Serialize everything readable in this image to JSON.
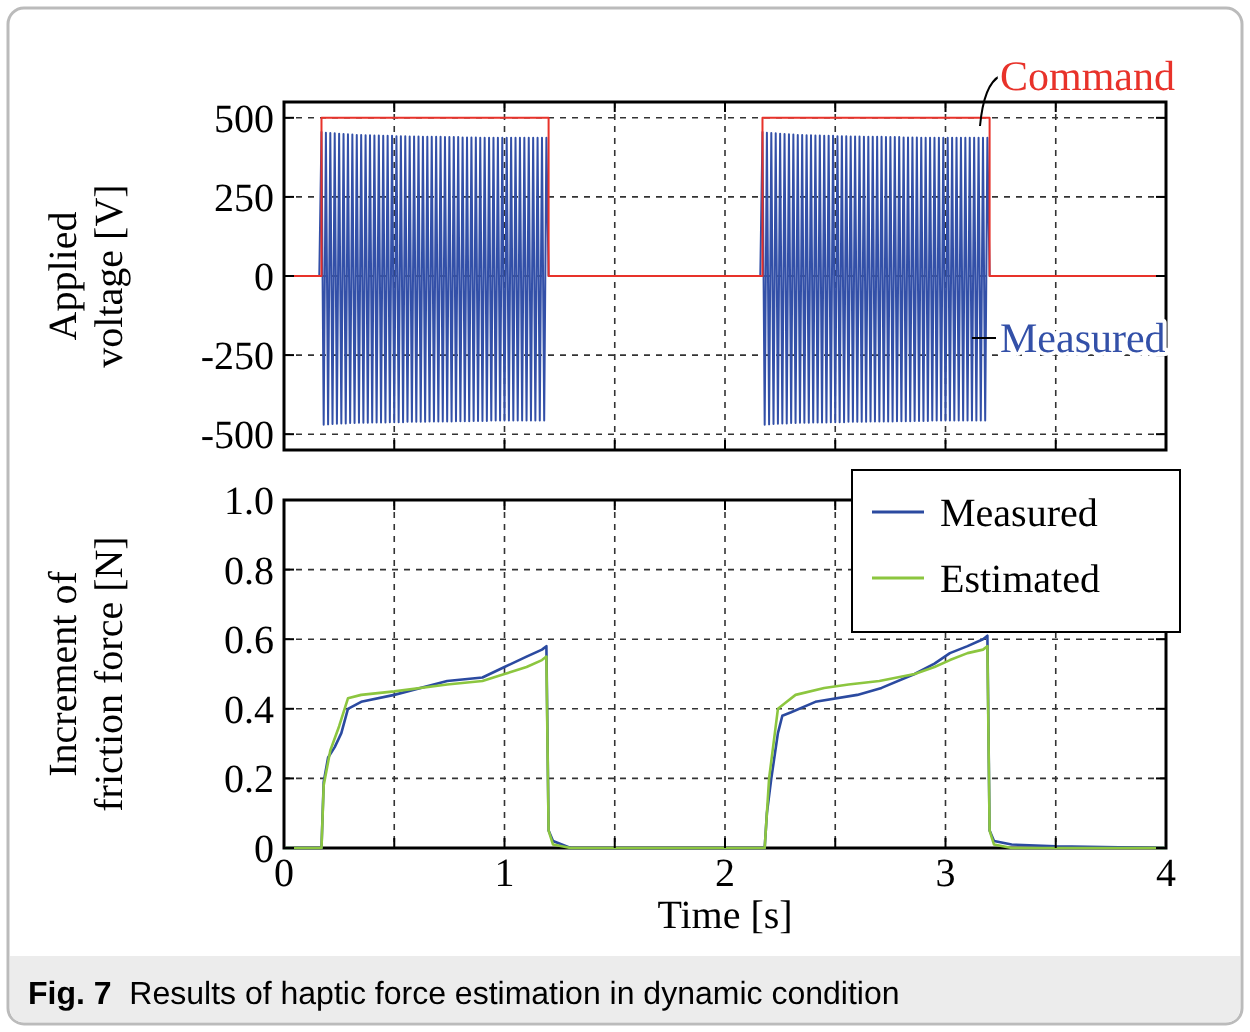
{
  "chart_data": [
    {
      "type": "line",
      "ylabel": "Applied voltage [V]",
      "xlim": [
        0,
        4
      ],
      "ylim": [
        -550,
        550
      ],
      "xticks": [
        {
          "value": 0,
          "label": null
        },
        {
          "value": 0.5,
          "label": null
        },
        {
          "value": 1,
          "label": null
        },
        {
          "value": 1.5,
          "label": null
        },
        {
          "value": 2,
          "label": null
        },
        {
          "value": 2.5,
          "label": null
        },
        {
          "value": 3,
          "label": null
        },
        {
          "value": 3.5,
          "label": null
        },
        {
          "value": 4,
          "label": null
        }
      ],
      "yticks": [
        -500,
        -250,
        0,
        250,
        500
      ],
      "tick_labels": "y",
      "grid": true,
      "legend": false,
      "series": [
        {
          "name": "Measured",
          "color": "#3350a8",
          "x": [
            0,
            0.16,
            0.17,
            0.18,
            0.19,
            0.2,
            0.21,
            0.22,
            0.23,
            0.24,
            0.25,
            0.26,
            0.27,
            0.28,
            0.29,
            0.3,
            0.31,
            0.32,
            0.33,
            0.34,
            0.35,
            0.36,
            0.37,
            0.38,
            0.39,
            0.4,
            0.41,
            0.42,
            0.43,
            0.44,
            0.45,
            0.46,
            0.47,
            0.48,
            0.49,
            0.5,
            0.51,
            0.52,
            0.53,
            0.54,
            0.55,
            0.56,
            0.57,
            0.58,
            0.59,
            0.6,
            0.61,
            0.62,
            0.63,
            0.64,
            0.65,
            0.66,
            0.67,
            0.68,
            0.69,
            0.7,
            0.71,
            0.72,
            0.73,
            0.74,
            0.75,
            0.76,
            0.77,
            0.78,
            0.79,
            0.8,
            0.81,
            0.82,
            0.83,
            0.84,
            0.85,
            0.86,
            0.87,
            0.88,
            0.89,
            0.9,
            0.91,
            0.92,
            0.93,
            0.94,
            0.95,
            0.96,
            0.97,
            0.98,
            0.99,
            1.0,
            1.01,
            1.02,
            1.03,
            1.04,
            1.05,
            1.06,
            1.07,
            1.08,
            1.09,
            1.1,
            1.11,
            1.12,
            1.13,
            1.14,
            1.15,
            1.16,
            1.17,
            1.18,
            1.19,
            1.2,
            2.16,
            2.17,
            2.18,
            2.19,
            2.2,
            2.21,
            2.22,
            2.23,
            2.24,
            2.25,
            2.26,
            2.27,
            2.28,
            2.29,
            2.3,
            2.31,
            2.32,
            2.33,
            2.34,
            2.35,
            2.36,
            2.37,
            2.38,
            2.39,
            2.4,
            2.41,
            2.42,
            2.43,
            2.44,
            2.45,
            2.46,
            2.47,
            2.48,
            2.49,
            2.5,
            2.51,
            2.52,
            2.53,
            2.54,
            2.55,
            2.56,
            2.57,
            2.58,
            2.59,
            2.6,
            2.61,
            2.62,
            2.63,
            2.64,
            2.65,
            2.66,
            2.67,
            2.68,
            2.69,
            2.7,
            2.71,
            2.72,
            2.73,
            2.74,
            2.75,
            2.76,
            2.77,
            2.78,
            2.79,
            2.8,
            2.81,
            2.82,
            2.83,
            2.84,
            2.85,
            2.86,
            2.87,
            2.88,
            2.89,
            2.9,
            2.91,
            2.92,
            2.93,
            2.94,
            2.95,
            2.96,
            2.97,
            2.98,
            2.99,
            3.0,
            3.01,
            3.02,
            3.03,
            3.04,
            3.05,
            3.06,
            3.07,
            3.08,
            3.09,
            3.1,
            3.11,
            3.12,
            3.13,
            3.14,
            3.15,
            3.16,
            3.17,
            3.18,
            3.19,
            3.2,
            4
          ],
          "values": [
            0,
            0,
            455,
            -470,
            453,
            -469,
            452,
            -468,
            451,
            -467,
            450,
            -466,
            449,
            -466,
            448,
            -465,
            447,
            -465,
            446,
            -464,
            446,
            -464,
            445,
            -464,
            445,
            -463,
            444,
            -463,
            444,
            -463,
            443,
            -463,
            443,
            -462,
            443,
            -462,
            442,
            -462,
            442,
            -462,
            442,
            -461,
            441,
            -461,
            441,
            -461,
            441,
            -461,
            440,
            -461,
            440,
            -460,
            440,
            -460,
            440,
            -460,
            440,
            -460,
            439,
            -460,
            439,
            -460,
            439,
            -459,
            439,
            -459,
            438,
            -459,
            438,
            -459,
            438,
            -458,
            438,
            -458,
            437,
            -458,
            437,
            -458,
            437,
            -457,
            437,
            -457,
            437,
            -457,
            437,
            -457,
            437,
            -457,
            437,
            -457,
            437,
            -457,
            437,
            -457,
            437,
            -457,
            437,
            -457,
            437,
            -457,
            437,
            -457,
            437,
            -457,
            437,
            0,
            0,
            455,
            -470,
            453,
            -469,
            452,
            -468,
            451,
            -467,
            450,
            -466,
            449,
            -466,
            448,
            -465,
            447,
            -465,
            446,
            -464,
            446,
            -464,
            445,
            -464,
            445,
            -463,
            444,
            -463,
            444,
            -463,
            443,
            -463,
            443,
            -462,
            443,
            -462,
            442,
            -462,
            442,
            -462,
            442,
            -461,
            441,
            -461,
            441,
            -461,
            441,
            -461,
            440,
            -461,
            440,
            -460,
            440,
            -460,
            440,
            -460,
            440,
            -460,
            439,
            -460,
            439,
            -460,
            439,
            -459,
            439,
            -459,
            438,
            -459,
            438,
            -459,
            438,
            -458,
            438,
            -458,
            437,
            -458,
            437,
            -458,
            437,
            -457,
            437,
            -457,
            437,
            -457,
            437,
            -457,
            437,
            -457,
            437,
            -457,
            437,
            -457,
            437,
            -457,
            437,
            -457,
            437,
            -457,
            437,
            -457,
            437,
            -457,
            437,
            -457,
            437,
            0,
            0
          ]
        },
        {
          "name": "Command",
          "color": "#e8322a",
          "x": [
            0,
            0.17,
            0.17,
            1.2,
            1.2,
            2.17,
            2.17,
            3.2,
            3.2,
            4
          ],
          "values": [
            0,
            0,
            500,
            500,
            0,
            0,
            500,
            500,
            0,
            0
          ]
        }
      ]
    },
    {
      "type": "line",
      "xlabel": "Time [s]",
      "ylabel": "Increment of friction force [N]",
      "xlim": [
        0,
        4
      ],
      "ylim": [
        0,
        1
      ],
      "xticks": [
        0,
        {
          "value": 0.5,
          "label": null
        },
        1,
        {
          "value": 1.5,
          "label": null
        },
        2,
        {
          "value": 2.5,
          "label": null
        },
        3,
        {
          "value": 3.5,
          "label": null
        },
        4
      ],
      "yticks": [
        0,
        0.2,
        0.4,
        0.6,
        0.8,
        {
          "value": 1,
          "label": "1.0"
        }
      ],
      "grid": true,
      "legend": "top right",
      "series": [
        {
          "name": "Measured",
          "color": "#2b4aa0",
          "x": [
            0,
            0.17,
            0.18,
            0.2,
            0.23,
            0.26,
            0.29,
            0.35,
            0.5,
            0.74,
            0.9,
            1.0,
            1.1,
            1.17,
            1.19,
            1.2,
            1.22,
            1.3,
            2.18,
            2.19,
            2.21,
            2.24,
            2.26,
            2.3,
            2.41,
            2.6,
            2.71,
            2.86,
            2.95,
            3.02,
            3.1,
            3.17,
            3.19,
            3.2,
            3.22,
            3.3,
            3.5,
            4
          ],
          "values": [
            0,
            0,
            0.19,
            0.26,
            0.29,
            0.33,
            0.4,
            0.42,
            0.44,
            0.48,
            0.49,
            0.52,
            0.55,
            0.57,
            0.58,
            0.05,
            0.02,
            0,
            0,
            0.1,
            0.2,
            0.33,
            0.38,
            0.39,
            0.42,
            0.44,
            0.46,
            0.5,
            0.53,
            0.56,
            0.58,
            0.6,
            0.61,
            0.05,
            0.02,
            0.01,
            0.005,
            0
          ]
        },
        {
          "name": "Estimated",
          "color": "#8cc63f",
          "x": [
            0,
            0.17,
            0.18,
            0.21,
            0.25,
            0.29,
            0.35,
            0.5,
            0.74,
            0.9,
            1.0,
            1.1,
            1.17,
            1.19,
            1.2,
            1.22,
            1.3,
            2.18,
            2.2,
            2.24,
            2.28,
            2.32,
            2.45,
            2.56,
            2.7,
            2.86,
            2.95,
            3.02,
            3.1,
            3.17,
            3.19,
            3.2,
            3.22,
            3.3,
            4
          ],
          "values": [
            0,
            0,
            0.18,
            0.28,
            0.35,
            0.43,
            0.44,
            0.45,
            0.47,
            0.48,
            0.5,
            0.52,
            0.54,
            0.55,
            0.05,
            0.01,
            0,
            0,
            0.2,
            0.4,
            0.42,
            0.44,
            0.46,
            0.47,
            0.48,
            0.5,
            0.52,
            0.54,
            0.56,
            0.57,
            0.58,
            0.05,
            0.01,
            0,
            0
          ]
        }
      ]
    },
    {
      "type": "other",
      "annotations": [
        "Fig. 7  Results of haptic force estimation in dynamic condition"
      ]
    }
  ]
}
